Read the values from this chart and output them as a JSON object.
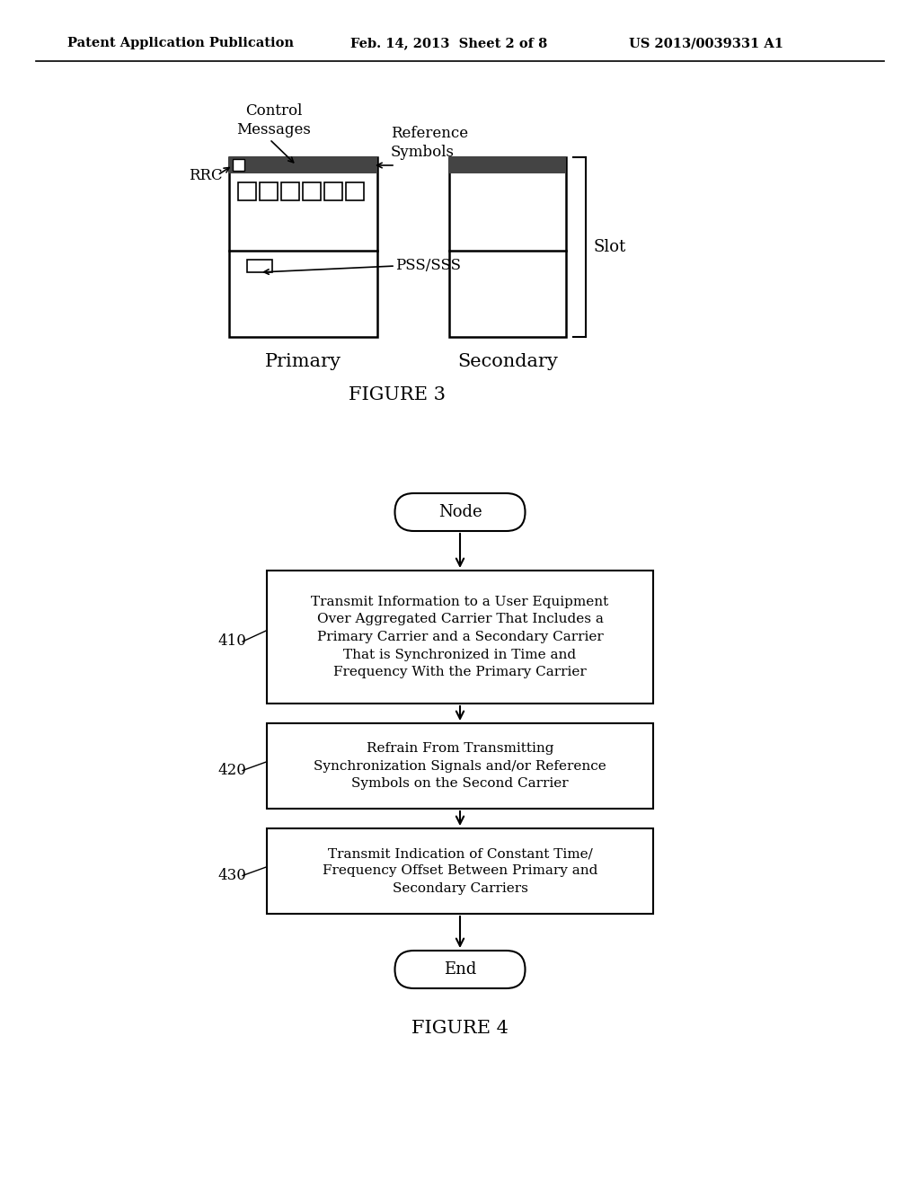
{
  "bg_color": "#ffffff",
  "header_left": "Patent Application Publication",
  "header_mid": "Feb. 14, 2013  Sheet 2 of 8",
  "header_right": "US 2013/0039331 A1",
  "fig3_title": "FIGURE 3",
  "fig4_title": "FIGURE 4",
  "primary_label": "Primary",
  "secondary_label": "Secondary",
  "slot_label": "Slot",
  "rrc_label": "RRC",
  "control_label": "Control\nMessages",
  "ref_label": "Reference\nSymbols",
  "pss_label": "PSS/SSS",
  "node_label": "Node",
  "end_label": "End",
  "box410_label": "Transmit Information to a User Equipment\nOver Aggregated Carrier That Includes a\nPrimary Carrier and a Secondary Carrier\nThat is Synchronized in Time and\nFrequency With the Primary Carrier",
  "box420_label": "Refrain From Transmitting\nSynchronization Signals and/or Reference\nSymbols on the Second Carrier",
  "box430_label": "Transmit Indication of Constant Time/\nFrequency Offset Between Primary and\nSecondary Carriers",
  "label410": "410",
  "label420": "420",
  "label430": "430"
}
